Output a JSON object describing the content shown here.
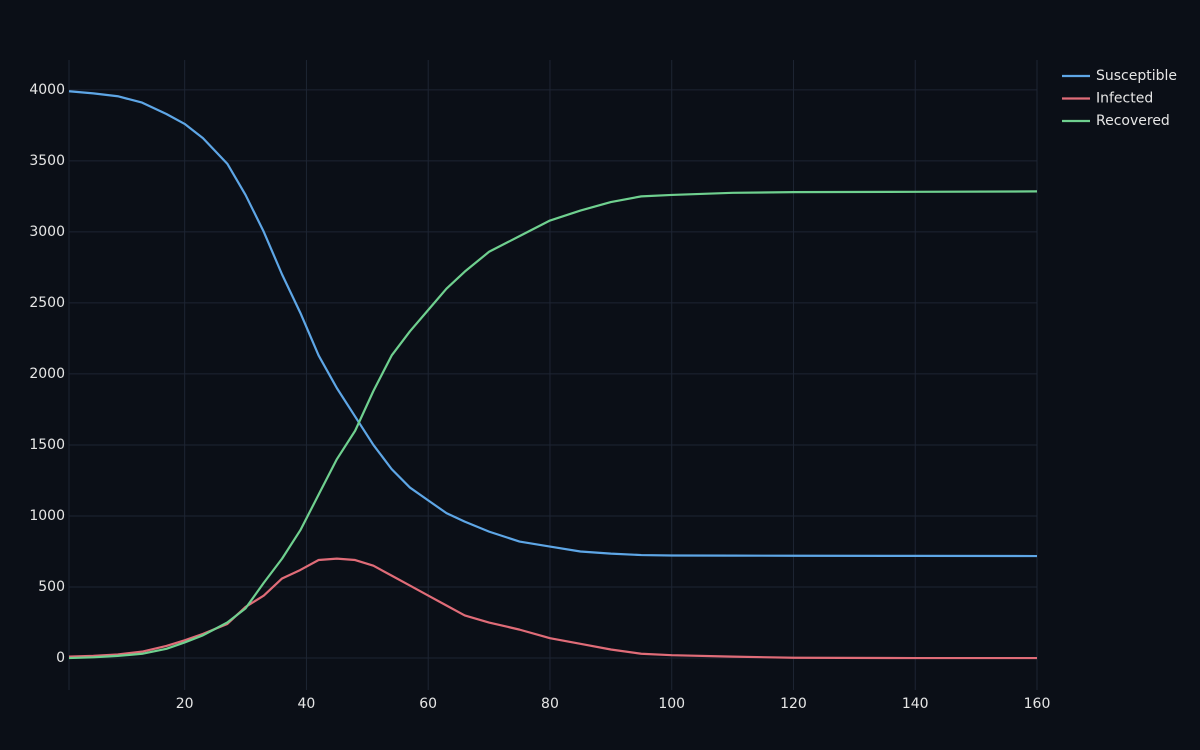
{
  "chart_data": {
    "type": "line",
    "x": [
      1,
      5,
      9,
      13,
      17,
      20,
      23,
      27,
      30,
      33,
      36,
      39,
      42,
      45,
      48,
      51,
      54,
      57,
      60,
      63,
      66,
      70,
      75,
      80,
      85,
      90,
      95,
      100,
      110,
      120,
      140,
      160
    ],
    "series": [
      {
        "name": "Susceptible",
        "color": "#5ea6e6",
        "values": [
          3990,
          3975,
          3955,
          3910,
          3830,
          3760,
          3660,
          3480,
          3260,
          3000,
          2700,
          2430,
          2130,
          1900,
          1700,
          1500,
          1330,
          1200,
          1110,
          1020,
          960,
          890,
          820,
          785,
          750,
          735,
          725,
          722,
          721,
          720,
          719,
          718
        ]
      },
      {
        "name": "Infected",
        "color": "#e06c78",
        "values": [
          10,
          15,
          25,
          45,
          85,
          125,
          170,
          240,
          360,
          440,
          560,
          620,
          690,
          700,
          690,
          650,
          580,
          510,
          440,
          370,
          300,
          250,
          200,
          140,
          100,
          60,
          30,
          20,
          10,
          2,
          0,
          0
        ]
      },
      {
        "name": "Recovered",
        "color": "#6fd08f",
        "values": [
          0,
          5,
          15,
          30,
          65,
          110,
          160,
          250,
          350,
          530,
          700,
          900,
          1150,
          1400,
          1600,
          1880,
          2130,
          2300,
          2450,
          2600,
          2720,
          2860,
          2970,
          3080,
          3150,
          3210,
          3250,
          3260,
          3275,
          3280,
          3282,
          3285
        ]
      }
    ],
    "xlim": [
      1,
      160
    ],
    "ylim": [
      -225,
      4210
    ],
    "xticks": [
      20,
      40,
      60,
      80,
      100,
      120,
      140,
      160
    ],
    "yticks": [
      0,
      500,
      1000,
      1500,
      2000,
      2500,
      3000,
      3500,
      4000
    ],
    "grid": true,
    "legend": "right"
  }
}
